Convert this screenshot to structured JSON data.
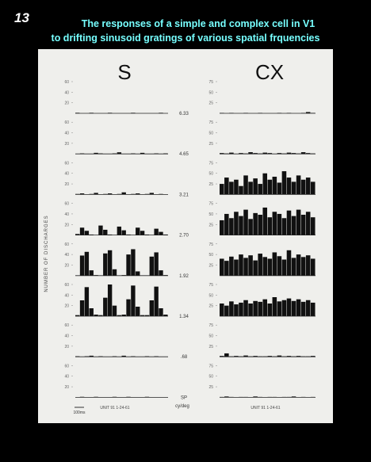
{
  "slide_number": "13",
  "title_lines": [
    "The responses of a simple and complex cell in V1",
    "to drifting sinusoid gratings of various spatial frquencies"
  ],
  "figure": {
    "simple_header": "S",
    "complex_header": "CX",
    "y_axis_label": "NUMBER OF DISCHARGES",
    "simple_ylim": [
      0,
      60
    ],
    "simple_yticks": [
      20,
      40,
      60
    ],
    "complex_ylim": [
      0,
      75
    ],
    "complex_yticks": [
      25,
      50,
      75
    ],
    "rows": [
      {
        "freq": "6.33",
        "simple": [
          1,
          0,
          0,
          1,
          0,
          0,
          0,
          1,
          0,
          0,
          0,
          0,
          1,
          0,
          0,
          0,
          0,
          0,
          1,
          0
        ],
        "complex": [
          1,
          0,
          1,
          0,
          0,
          1,
          0,
          0,
          1,
          0,
          0,
          0,
          1,
          0,
          1,
          0,
          0,
          1,
          3,
          1
        ]
      },
      {
        "freq": "4.65",
        "simple": [
          0,
          1,
          0,
          0,
          2,
          1,
          0,
          0,
          1,
          3,
          0,
          0,
          1,
          0,
          2,
          0,
          0,
          1,
          0,
          1
        ],
        "complex": [
          2,
          1,
          3,
          0,
          2,
          1,
          4,
          2,
          1,
          3,
          2,
          0,
          2,
          1,
          3,
          2,
          1,
          4,
          2,
          1
        ]
      },
      {
        "freq": "3.21",
        "simple": [
          1,
          2,
          0,
          1,
          3,
          0,
          1,
          2,
          0,
          1,
          4,
          0,
          1,
          2,
          0,
          1,
          3,
          0,
          1,
          0
        ],
        "complex": [
          25,
          40,
          30,
          35,
          20,
          45,
          30,
          38,
          25,
          50,
          35,
          42,
          28,
          55,
          40,
          30,
          45,
          35,
          40,
          30
        ]
      },
      {
        "freq": "2.70",
        "simple": [
          2,
          14,
          8,
          1,
          0,
          18,
          10,
          1,
          0,
          16,
          9,
          1,
          0,
          14,
          8,
          1,
          0,
          12,
          6,
          1
        ],
        "complex": [
          35,
          50,
          40,
          55,
          45,
          60,
          38,
          52,
          48,
          65,
          42,
          55,
          50,
          40,
          58,
          45,
          60,
          48,
          55,
          42
        ]
      },
      {
        "freq": "1.92",
        "simple": [
          0,
          38,
          45,
          10,
          1,
          0,
          42,
          48,
          12,
          0,
          1,
          40,
          50,
          8,
          0,
          0,
          36,
          44,
          10,
          1
        ],
        "complex": [
          40,
          35,
          45,
          38,
          50,
          42,
          48,
          36,
          52,
          44,
          40,
          55,
          46,
          38,
          60,
          42,
          50,
          44,
          48,
          40
        ]
      },
      {
        "freq": "1.34",
        "simple": [
          2,
          30,
          55,
          15,
          3,
          2,
          35,
          60,
          20,
          2,
          3,
          32,
          58,
          18,
          2,
          2,
          30,
          56,
          15,
          3
        ],
        "complex": [
          30,
          25,
          35,
          28,
          32,
          38,
          30,
          36,
          34,
          40,
          30,
          45,
          35,
          38,
          42,
          36,
          40,
          34,
          38,
          32
        ]
      },
      {
        "freq": ".68",
        "simple": [
          1,
          0,
          1,
          2,
          0,
          1,
          0,
          0,
          1,
          0,
          2,
          0,
          1,
          0,
          0,
          1,
          0,
          1,
          0,
          0
        ],
        "complex": [
          2,
          8,
          1,
          2,
          1,
          3,
          1,
          2,
          1,
          1,
          2,
          1,
          3,
          1,
          2,
          1,
          2,
          1,
          1,
          2
        ]
      },
      {
        "freq": "SP",
        "simple": [
          0,
          1,
          0,
          0,
          1,
          0,
          0,
          0,
          1,
          0,
          0,
          1,
          0,
          0,
          0,
          1,
          0,
          0,
          0,
          0
        ],
        "complex": [
          1,
          2,
          1,
          0,
          1,
          1,
          0,
          2,
          1,
          0,
          1,
          1,
          0,
          1,
          1,
          2,
          0,
          1,
          0,
          1
        ]
      }
    ],
    "scale_bar_label": "100ms",
    "units_label": "cy/deg",
    "simple_unit_label": "UNIT 91 1-24-61",
    "complex_unit_label": "UNIT 91 1-24-61"
  }
}
